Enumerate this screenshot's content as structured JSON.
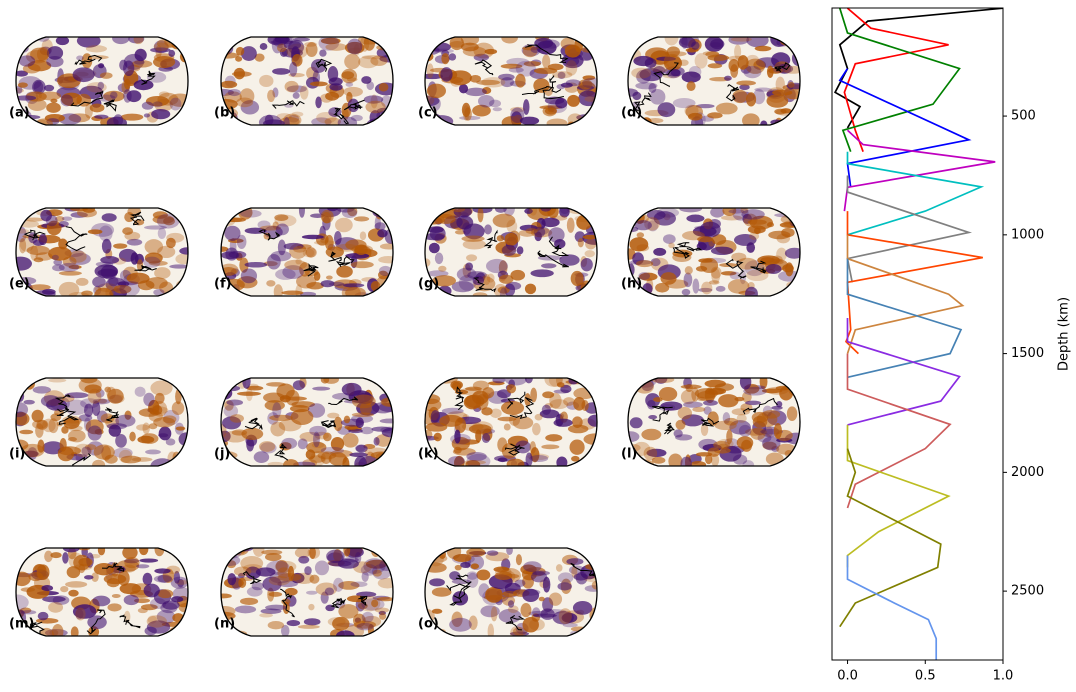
{
  "chart_data": {
    "type": "line",
    "y_label": "Depth (km)",
    "xlim": [
      -0.1,
      1.0
    ],
    "xticks": [
      {
        "value": 0,
        "label": "0.0"
      },
      0.5,
      {
        "value": 1,
        "label": "1.0"
      }
    ],
    "ylim": [
      2790,
      45
    ],
    "yticks": [
      500,
      1000,
      1500,
      2000,
      2500
    ],
    "y_inverted": true,
    "series": [
      {
        "name": "(a)",
        "color": "#000000",
        "depth": [
          46,
          100,
          200,
          300,
          400,
          460,
          550
        ],
        "values": [
          1.0,
          0.13,
          -0.05,
          0.0,
          -0.08,
          0.08,
          0.0
        ]
      },
      {
        "name": "(b)",
        "color": "#ff0000",
        "depth": [
          46,
          130,
          200,
          280,
          400,
          560,
          650
        ],
        "values": [
          0.0,
          0.15,
          0.65,
          0.05,
          -0.02,
          0.05,
          0.1
        ]
      },
      {
        "name": "(c)",
        "color": "#008000",
        "depth": [
          46,
          150,
          300,
          450,
          560,
          650
        ],
        "values": [
          -0.05,
          0.0,
          0.72,
          0.55,
          -0.03,
          0.02
        ]
      },
      {
        "name": "(d)",
        "color": "#0000ff",
        "depth": [
          300,
          350,
          600,
          700,
          800
        ],
        "values": [
          0.0,
          -0.05,
          0.78,
          0.0,
          0.02
        ]
      },
      {
        "name": "(e)",
        "color": "#bf00bf",
        "depth": [
          560,
          620,
          693,
          800,
          900
        ],
        "values": [
          0.0,
          0.1,
          0.95,
          0.0,
          -0.02
        ]
      },
      {
        "name": "(f)",
        "color": "#00bfbf",
        "depth": [
          650,
          700,
          798,
          900,
          1000
        ],
        "values": [
          0.0,
          0.0,
          0.86,
          0.5,
          0.0
        ]
      },
      {
        "name": "(g)",
        "color": "#808080",
        "depth": [
          750,
          820,
          990,
          1100,
          1200
        ],
        "values": [
          0.0,
          0.0,
          0.78,
          0.0,
          0.03
        ]
      },
      {
        "name": "(h)",
        "color": "#ff4500",
        "depth": [
          900,
          1000,
          1096,
          1200,
          1400,
          1450,
          1500
        ],
        "values": [
          0.0,
          0.0,
          0.87,
          0.0,
          0.02,
          -0.01,
          0.07
        ]
      },
      {
        "name": "(i)",
        "color": "#cd853f",
        "depth": [
          1000,
          1100,
          1250,
          1298,
          1400,
          1500
        ],
        "values": [
          0.0,
          0.0,
          0.65,
          0.74,
          0.05,
          0.0
        ]
      },
      {
        "name": "(j)",
        "color": "#4682b4",
        "depth": [
          1100,
          1250,
          1399,
          1500,
          1600
        ],
        "values": [
          0.0,
          0.0,
          0.73,
          0.66,
          0.0
        ]
      },
      {
        "name": "(k)",
        "color": "#8a2be2",
        "depth": [
          1350,
          1450,
          1597,
          1700,
          1800
        ],
        "values": [
          0.0,
          0.0,
          0.72,
          0.6,
          0.0
        ]
      },
      {
        "name": "(l)",
        "color": "#cd5c5c",
        "depth": [
          1500,
          1650,
          1798,
          1900,
          2050,
          2150
        ],
        "values": [
          0.0,
          0.0,
          0.66,
          0.5,
          0.05,
          0.0
        ]
      },
      {
        "name": "(m)",
        "color": "#bcbd22",
        "depth": [
          1800,
          1950,
          2100,
          2250,
          2350,
          2400
        ],
        "values": [
          0.0,
          0.0,
          0.65,
          0.2,
          0.0,
          0.0
        ]
      },
      {
        "name": "(n)",
        "color": "#808000",
        "depth": [
          1900,
          2000,
          2100,
          2302,
          2400,
          2550,
          2650
        ],
        "values": [
          0.0,
          0.05,
          0.0,
          0.6,
          0.58,
          0.05,
          -0.05
        ]
      },
      {
        "name": "(o)",
        "color": "#6495ed",
        "depth": [
          2350,
          2450,
          2550,
          2620,
          2700,
          2790
        ],
        "values": [
          0.0,
          0.0,
          0.3,
          0.52,
          0.57,
          0.57
        ]
      }
    ]
  }
}
